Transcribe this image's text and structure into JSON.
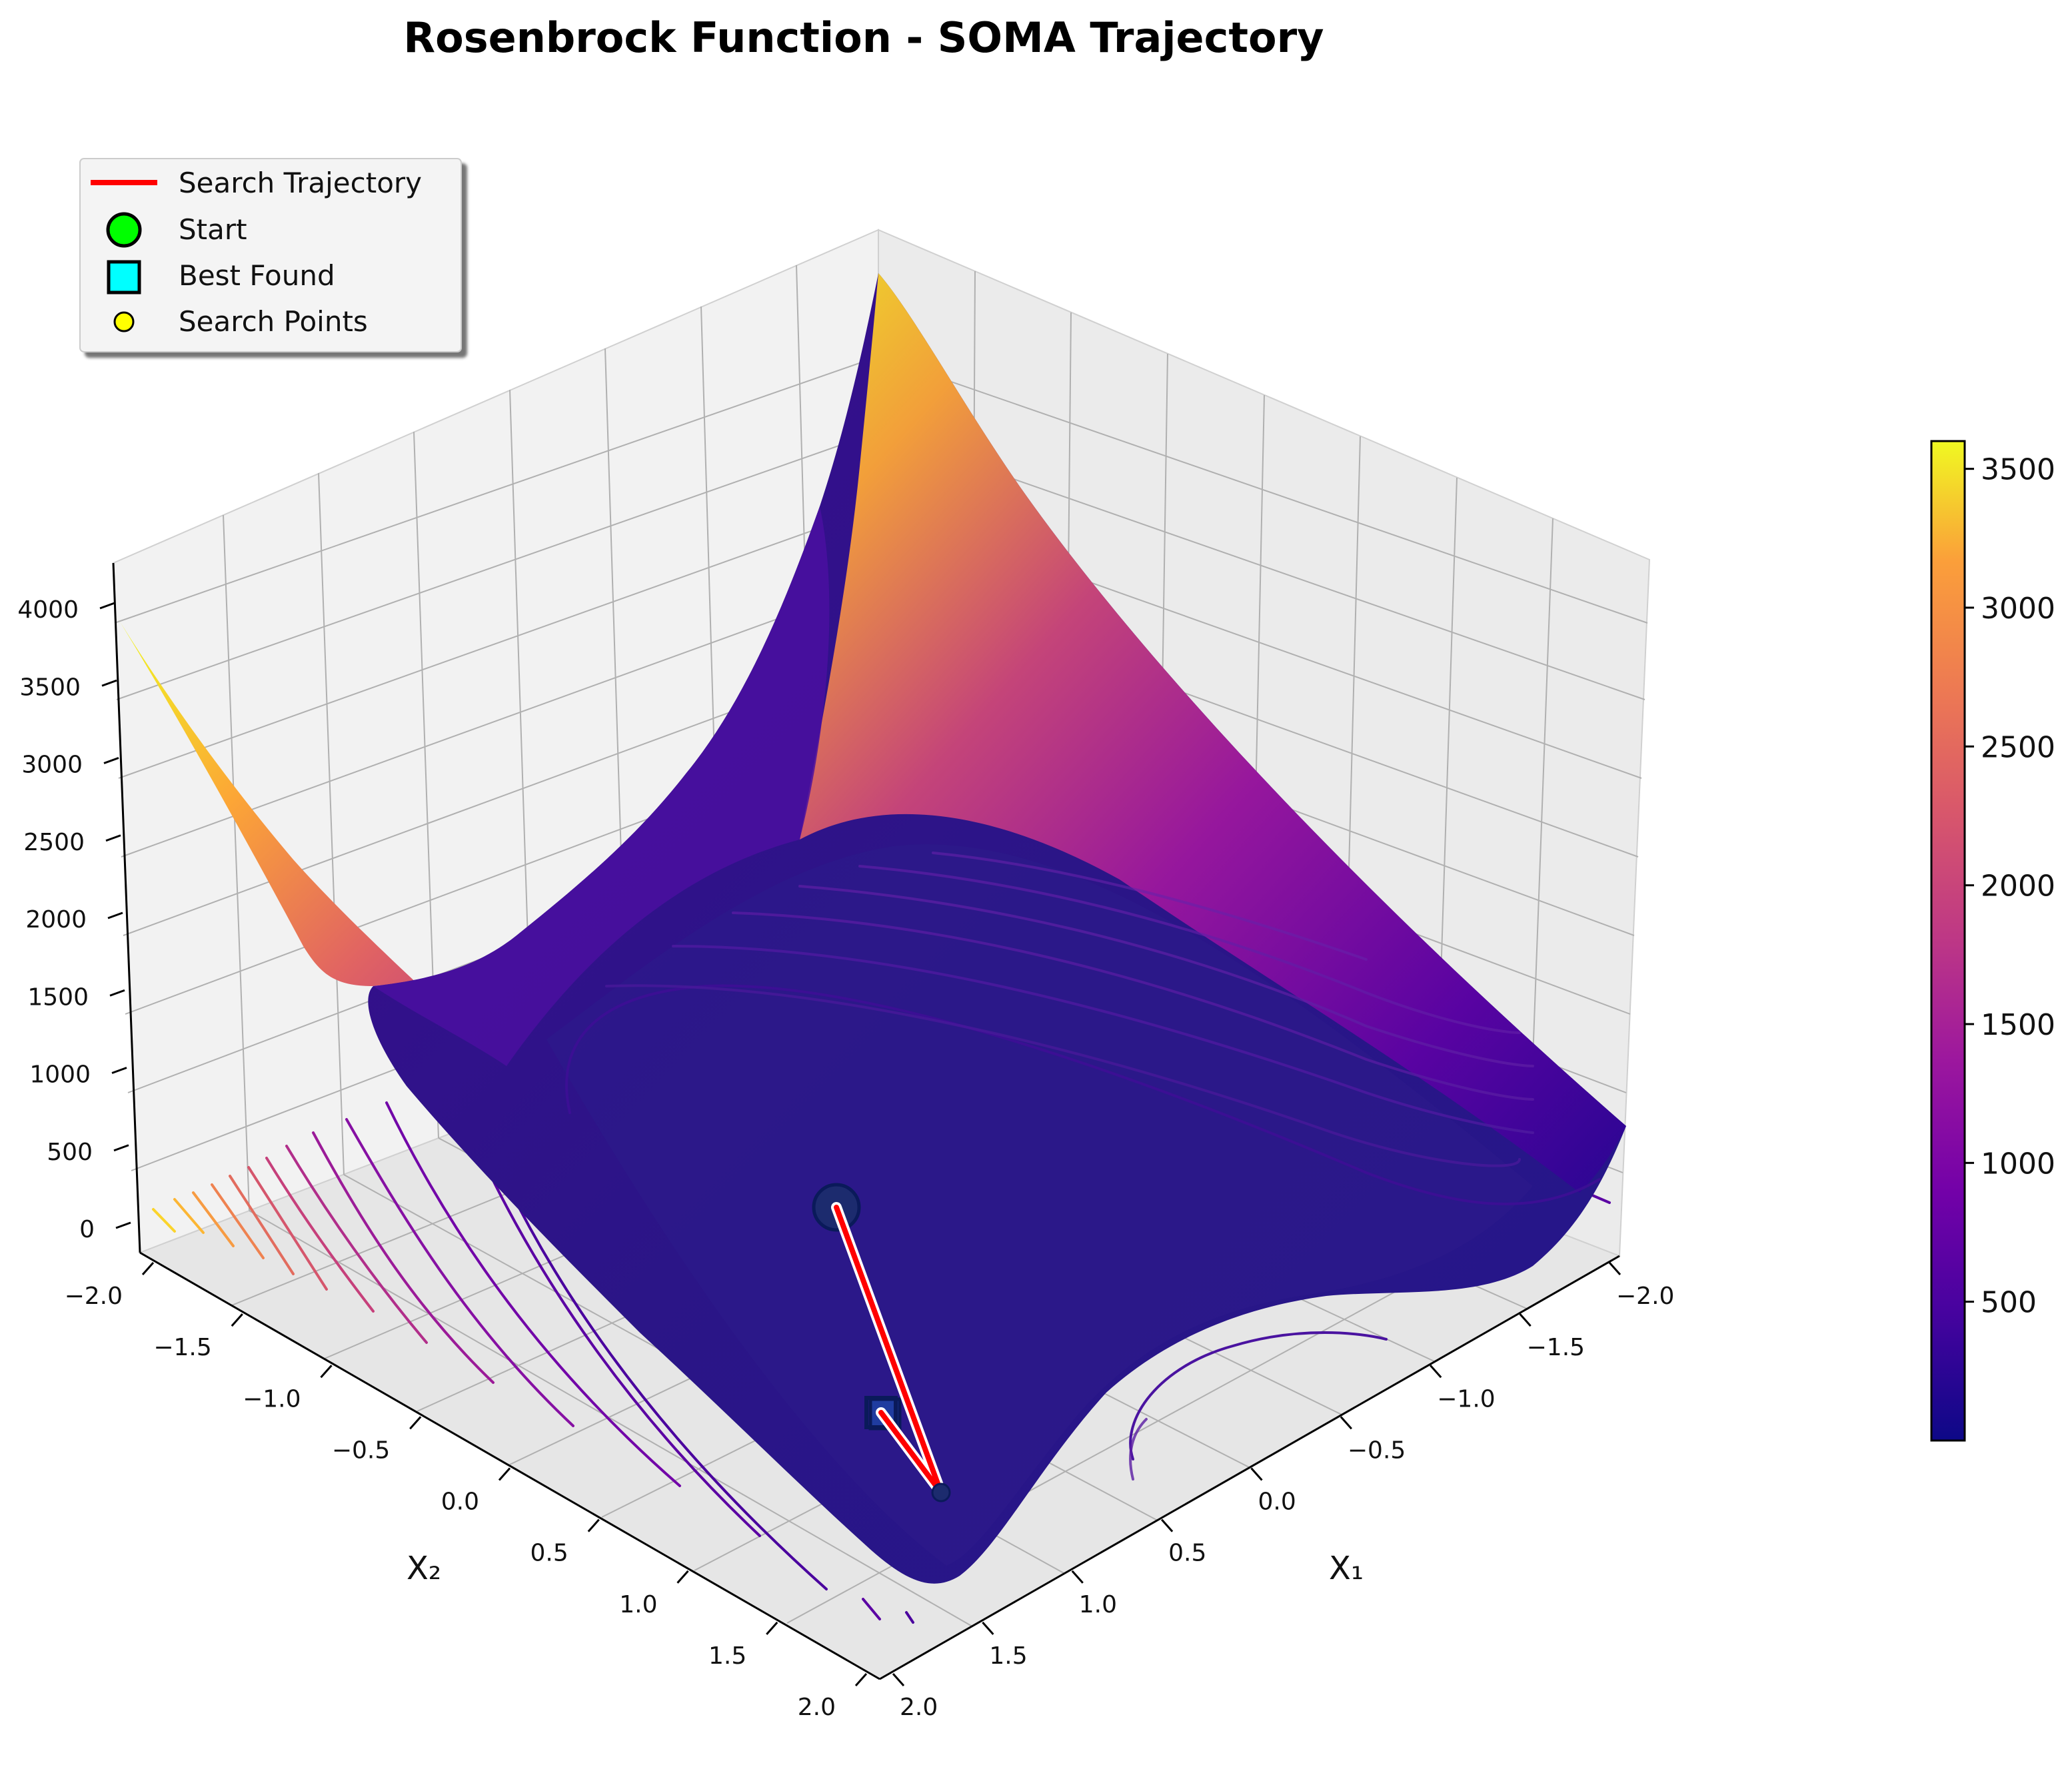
{
  "chart_data": {
    "type": "surface3d",
    "title": "Rosenbrock Function - SOMA Trajectory",
    "xlabel": "X₁",
    "ylabel": "X₂",
    "zlabel": "",
    "x_ticks": [
      "−2.0",
      "−1.5",
      "−1.0",
      "−0.5",
      "0.0",
      "0.5",
      "1.0",
      "1.5",
      "2.0"
    ],
    "y_ticks": [
      "−2.0",
      "−1.5",
      "−1.0",
      "−0.5",
      "0.0",
      "0.5",
      "1.0",
      "1.5",
      "2.0"
    ],
    "z_ticks": [
      "0",
      "500",
      "1000",
      "1500",
      "2000",
      "2500",
      "3000",
      "3500",
      "4000"
    ],
    "xlim": [
      -2,
      2
    ],
    "ylim": [
      -2,
      2
    ],
    "zlim": [
      0,
      4000
    ],
    "colorbar": {
      "colormap": "plasma",
      "ticks": [
        "500",
        "1000",
        "1500",
        "2000",
        "2500",
        "3000",
        "3500"
      ],
      "range": [
        0,
        3600
      ]
    },
    "legend": {
      "placement": "top-left",
      "entries": [
        {
          "label": "Search Trajectory",
          "marker": "line",
          "color": "#ff0000"
        },
        {
          "label": "Start",
          "marker": "circle",
          "color": "#00ff00"
        },
        {
          "label": "Best Found",
          "marker": "square",
          "color": "#00ffff"
        },
        {
          "label": "Search Points",
          "marker": "small-circle",
          "color": "#ffff00"
        }
      ]
    },
    "trajectory": {
      "start": {
        "x1": -0.4,
        "x2": -0.3,
        "f": 50
      },
      "points": [
        {
          "x1": -0.4,
          "x2": -0.3,
          "f": 50
        },
        {
          "x1": 0.95,
          "x2": 0.45,
          "f": 20
        },
        {
          "x1": 0.2,
          "x2": 0.55,
          "f": 30
        }
      ],
      "best": {
        "x1": 0.2,
        "x2": 0.55,
        "f": 30
      }
    }
  },
  "colors": {
    "trajectory": "#ff0000",
    "start": "#00ff00",
    "best": "#00ffff",
    "points": "#ffff00"
  }
}
